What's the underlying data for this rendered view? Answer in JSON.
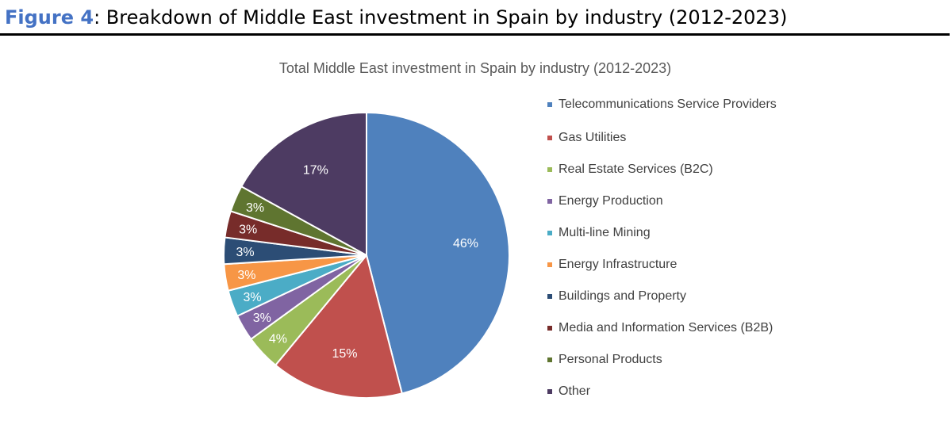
{
  "header": {
    "figure_label": "Figure 4",
    "separator": ":",
    "title": " Breakdown of Middle East investment in Spain by industry (2012-2023)"
  },
  "chart_data": {
    "type": "pie",
    "title": "Total Middle East investment in Spain by industry (2012-2023)",
    "legend_position": "right",
    "start_angle": "12 o'clock, clockwise",
    "slices": [
      {
        "label": "Telecommunications Service Providers",
        "value": 46,
        "display": "46%",
        "color": "#4f81bd"
      },
      {
        "label": "Gas Utilities",
        "value": 15,
        "display": "15%",
        "color": "#c0504d"
      },
      {
        "label": "Real Estate Services (B2C)",
        "value": 4,
        "display": "4%",
        "color": "#9bbb59"
      },
      {
        "label": "Energy Production",
        "value": 3,
        "display": "3%",
        "color": "#8064a2"
      },
      {
        "label": "Multi-line Mining",
        "value": 3,
        "display": "3%",
        "color": "#4bacc6"
      },
      {
        "label": "Energy Infrastructure",
        "value": 3,
        "display": "3%",
        "color": "#f79646"
      },
      {
        "label": "Buildings and Property",
        "value": 3,
        "display": "3%",
        "color": "#2c4d75"
      },
      {
        "label": "Media and Information Services (B2B)",
        "value": 3,
        "display": "3%",
        "color": "#772c2a"
      },
      {
        "label": "Personal Products",
        "value": 3,
        "display": "3%",
        "color": "#5f7530"
      },
      {
        "label": "Other",
        "value": 17,
        "display": "17%",
        "color": "#4d3b62"
      }
    ]
  }
}
